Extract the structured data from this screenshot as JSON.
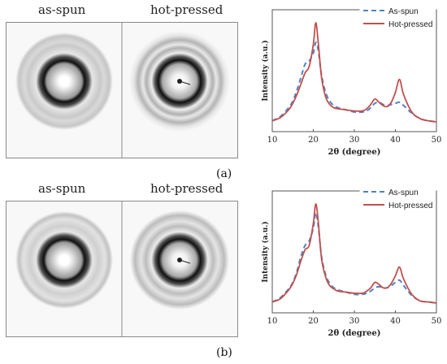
{
  "rows": [
    {
      "pattern_labels": [
        "as-spun",
        "hot-pressed"
      ],
      "caption": "(a)"
    },
    {
      "pattern_labels": [
        "as-spun",
        "hot-pressed"
      ],
      "caption": "(b)"
    }
  ],
  "chart_data": [
    {
      "type": "line",
      "xlabel": "2θ (degree)",
      "ylabel": "Intensity (a.u.)",
      "xlim": [
        10,
        50
      ],
      "xticks": [
        10,
        20,
        30,
        40,
        50
      ],
      "yticks_labels": "none",
      "grid": false,
      "legend_position": "top-right",
      "series": [
        {
          "name": "As-spun",
          "color": "#4f83c4",
          "style": "dashed",
          "x": [
            10,
            12,
            14,
            15,
            16,
            17,
            18,
            19,
            20,
            20.6,
            21.2,
            22,
            23,
            24,
            25,
            26,
            28,
            30,
            32,
            33,
            34,
            35,
            36,
            37,
            38,
            39,
            40,
            41,
            42,
            44,
            46,
            48,
            50
          ],
          "y": [
            0.1,
            0.14,
            0.22,
            0.28,
            0.38,
            0.5,
            0.62,
            0.65,
            0.72,
            0.82,
            0.75,
            0.52,
            0.36,
            0.28,
            0.24,
            0.22,
            0.2,
            0.18,
            0.18,
            0.19,
            0.22,
            0.26,
            0.27,
            0.25,
            0.24,
            0.25,
            0.26,
            0.27,
            0.24,
            0.17,
            0.12,
            0.1,
            0.09
          ]
        },
        {
          "name": "Hot-pressed",
          "color": "#c0504d",
          "style": "solid",
          "x": [
            10,
            12,
            14,
            15,
            16,
            17,
            18,
            19,
            20,
            20.6,
            21.2,
            22,
            23,
            24,
            25,
            26,
            28,
            30,
            32,
            33,
            34,
            35,
            36,
            37,
            38,
            39,
            40,
            41,
            42,
            44,
            46,
            48,
            50
          ],
          "y": [
            0.1,
            0.13,
            0.2,
            0.26,
            0.34,
            0.44,
            0.54,
            0.6,
            0.8,
            1.0,
            0.82,
            0.5,
            0.32,
            0.25,
            0.22,
            0.21,
            0.2,
            0.19,
            0.19,
            0.21,
            0.25,
            0.3,
            0.27,
            0.24,
            0.23,
            0.27,
            0.36,
            0.48,
            0.34,
            0.18,
            0.12,
            0.1,
            0.09
          ]
        }
      ]
    },
    {
      "type": "line",
      "xlabel": "2θ (degree)",
      "ylabel": "Intensity (a.u.)",
      "xlim": [
        10,
        50
      ],
      "xticks": [
        10,
        20,
        30,
        40,
        50
      ],
      "yticks_labels": "none",
      "grid": false,
      "legend_position": "top-right",
      "series": [
        {
          "name": "As-spun",
          "color": "#4f83c4",
          "style": "dashed",
          "x": [
            10,
            12,
            14,
            15,
            16,
            17,
            18,
            19,
            20,
            20.6,
            21.2,
            22,
            23,
            24,
            25,
            26,
            28,
            30,
            32,
            33,
            34,
            35,
            36,
            37,
            38,
            39,
            40,
            41,
            42,
            44,
            46,
            48,
            50
          ],
          "y": [
            0.1,
            0.14,
            0.22,
            0.28,
            0.38,
            0.52,
            0.62,
            0.66,
            0.78,
            0.92,
            0.8,
            0.52,
            0.35,
            0.27,
            0.23,
            0.21,
            0.19,
            0.17,
            0.17,
            0.18,
            0.2,
            0.23,
            0.24,
            0.23,
            0.23,
            0.25,
            0.28,
            0.3,
            0.25,
            0.16,
            0.11,
            0.1,
            0.09
          ]
        },
        {
          "name": "Hot-pressed",
          "color": "#c0504d",
          "style": "solid",
          "x": [
            10,
            12,
            14,
            15,
            16,
            17,
            18,
            19,
            20,
            20.6,
            21.2,
            22,
            23,
            24,
            25,
            26,
            28,
            30,
            32,
            33,
            34,
            35,
            36,
            37,
            38,
            39,
            40,
            41,
            42,
            44,
            46,
            48,
            50
          ],
          "y": [
            0.1,
            0.13,
            0.21,
            0.27,
            0.36,
            0.48,
            0.58,
            0.62,
            0.82,
            1.0,
            0.84,
            0.5,
            0.33,
            0.25,
            0.22,
            0.2,
            0.19,
            0.18,
            0.18,
            0.2,
            0.23,
            0.28,
            0.26,
            0.23,
            0.23,
            0.27,
            0.34,
            0.42,
            0.31,
            0.17,
            0.11,
            0.1,
            0.09
          ]
        }
      ]
    }
  ]
}
